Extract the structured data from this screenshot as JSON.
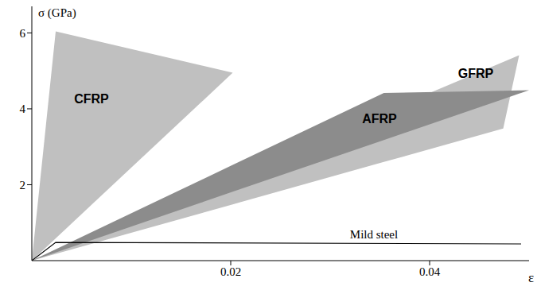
{
  "chart_data": {
    "type": "area",
    "xlabel": "ε",
    "ylabel": "σ (GPa)",
    "xlim": [
      0,
      0.05
    ],
    "ylim": [
      0,
      6.7
    ],
    "xticks": [
      0.02,
      0.04
    ],
    "yticks": [
      2,
      4,
      6
    ],
    "grid": false,
    "series": [
      {
        "name": "GFRP",
        "type": "polygon",
        "color": "#c0c0c0",
        "x": [
          0,
          0.049,
          0.0474
        ],
        "values": [
          0,
          5.41,
          3.48
        ]
      },
      {
        "name": "AFRP",
        "type": "polygon",
        "color": "#8c8c8c",
        "x": [
          0,
          0.0354,
          0.05
        ],
        "values": [
          0,
          4.42,
          4.49
        ]
      },
      {
        "name": "CFRP",
        "type": "polygon",
        "color": "#c0c0c0",
        "x": [
          0,
          0.0024,
          0.0202
        ],
        "values": [
          0,
          6.04,
          4.95
        ]
      },
      {
        "name": "Mild steel",
        "type": "line",
        "color": "#000000",
        "x": [
          0,
          0.0024,
          0.0492
        ],
        "values": [
          0,
          0.48,
          0.44
        ]
      }
    ]
  }
}
